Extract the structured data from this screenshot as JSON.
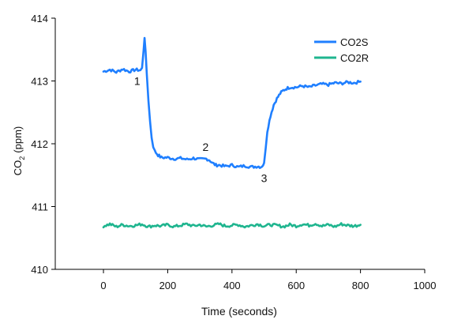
{
  "chart_data": {
    "type": "line",
    "xlabel": "Time (seconds)",
    "ylabel": "CO",
    "ylabel_subscript": "2",
    "ylabel_unit": "(ppm)",
    "xlim": [
      -150,
      1000
    ],
    "ylim": [
      410,
      414
    ],
    "x_ticks": [
      "0",
      "200",
      "400",
      "600",
      "800",
      "1000"
    ],
    "x_tick_values": [
      0,
      200,
      400,
      600,
      800,
      1000
    ],
    "y_ticks": [
      "410",
      "411",
      "412",
      "413",
      "414"
    ],
    "y_tick_values": [
      410,
      411,
      412,
      413,
      414
    ],
    "grid": false,
    "legend_position": "top-right",
    "series": [
      {
        "name": "CO2S",
        "color": "#1f7fff",
        "x": [
          0,
          20,
          40,
          60,
          80,
          100,
          115,
          120,
          125,
          128,
          131,
          135,
          140,
          145,
          150,
          155,
          160,
          170,
          180,
          200,
          220,
          240,
          260,
          280,
          300,
          320,
          330,
          340,
          350,
          360,
          380,
          400,
          420,
          440,
          460,
          480,
          490,
          500,
          505,
          510,
          520,
          530,
          540,
          550,
          560,
          570,
          580,
          600,
          620,
          640,
          660,
          680,
          700,
          720,
          740,
          760,
          780,
          800
        ],
        "y": [
          413.15,
          413.18,
          413.14,
          413.19,
          413.15,
          413.18,
          413.17,
          413.2,
          413.5,
          413.7,
          413.45,
          413.1,
          412.7,
          412.35,
          412.1,
          411.96,
          411.88,
          411.82,
          411.78,
          411.78,
          411.76,
          411.77,
          411.75,
          411.77,
          411.75,
          411.76,
          411.74,
          411.69,
          411.66,
          411.66,
          411.64,
          411.66,
          411.63,
          411.65,
          411.63,
          411.64,
          411.63,
          411.68,
          411.95,
          412.2,
          412.45,
          412.62,
          412.72,
          412.8,
          412.85,
          412.88,
          412.9,
          412.9,
          412.92,
          412.9,
          412.93,
          412.95,
          412.94,
          412.97,
          412.96,
          412.98,
          412.97,
          412.99
        ]
      },
      {
        "name": "CO2R",
        "color": "#1fb58f",
        "x": [
          0,
          20,
          40,
          60,
          80,
          100,
          120,
          140,
          160,
          180,
          200,
          220,
          240,
          260,
          280,
          300,
          320,
          340,
          360,
          380,
          400,
          420,
          440,
          460,
          480,
          500,
          520,
          540,
          560,
          580,
          600,
          620,
          640,
          660,
          680,
          700,
          720,
          740,
          760,
          780,
          800
        ],
        "y": [
          410.69,
          410.72,
          410.68,
          410.71,
          410.69,
          410.7,
          410.72,
          410.68,
          410.7,
          410.69,
          410.71,
          410.68,
          410.7,
          410.72,
          410.69,
          410.71,
          410.68,
          410.7,
          410.72,
          410.69,
          410.7,
          410.71,
          410.68,
          410.7,
          410.72,
          410.69,
          410.71,
          410.7,
          410.68,
          410.71,
          410.69,
          410.72,
          410.7,
          410.73,
          410.69,
          410.71,
          410.68,
          410.72,
          410.7,
          410.69,
          410.71
        ]
      }
    ],
    "annotations": [
      {
        "text": "1",
        "x": 105,
        "y": 413.0
      },
      {
        "text": "2",
        "x": 318,
        "y": 411.95
      },
      {
        "text": "3",
        "x": 500,
        "y": 411.45
      }
    ]
  }
}
